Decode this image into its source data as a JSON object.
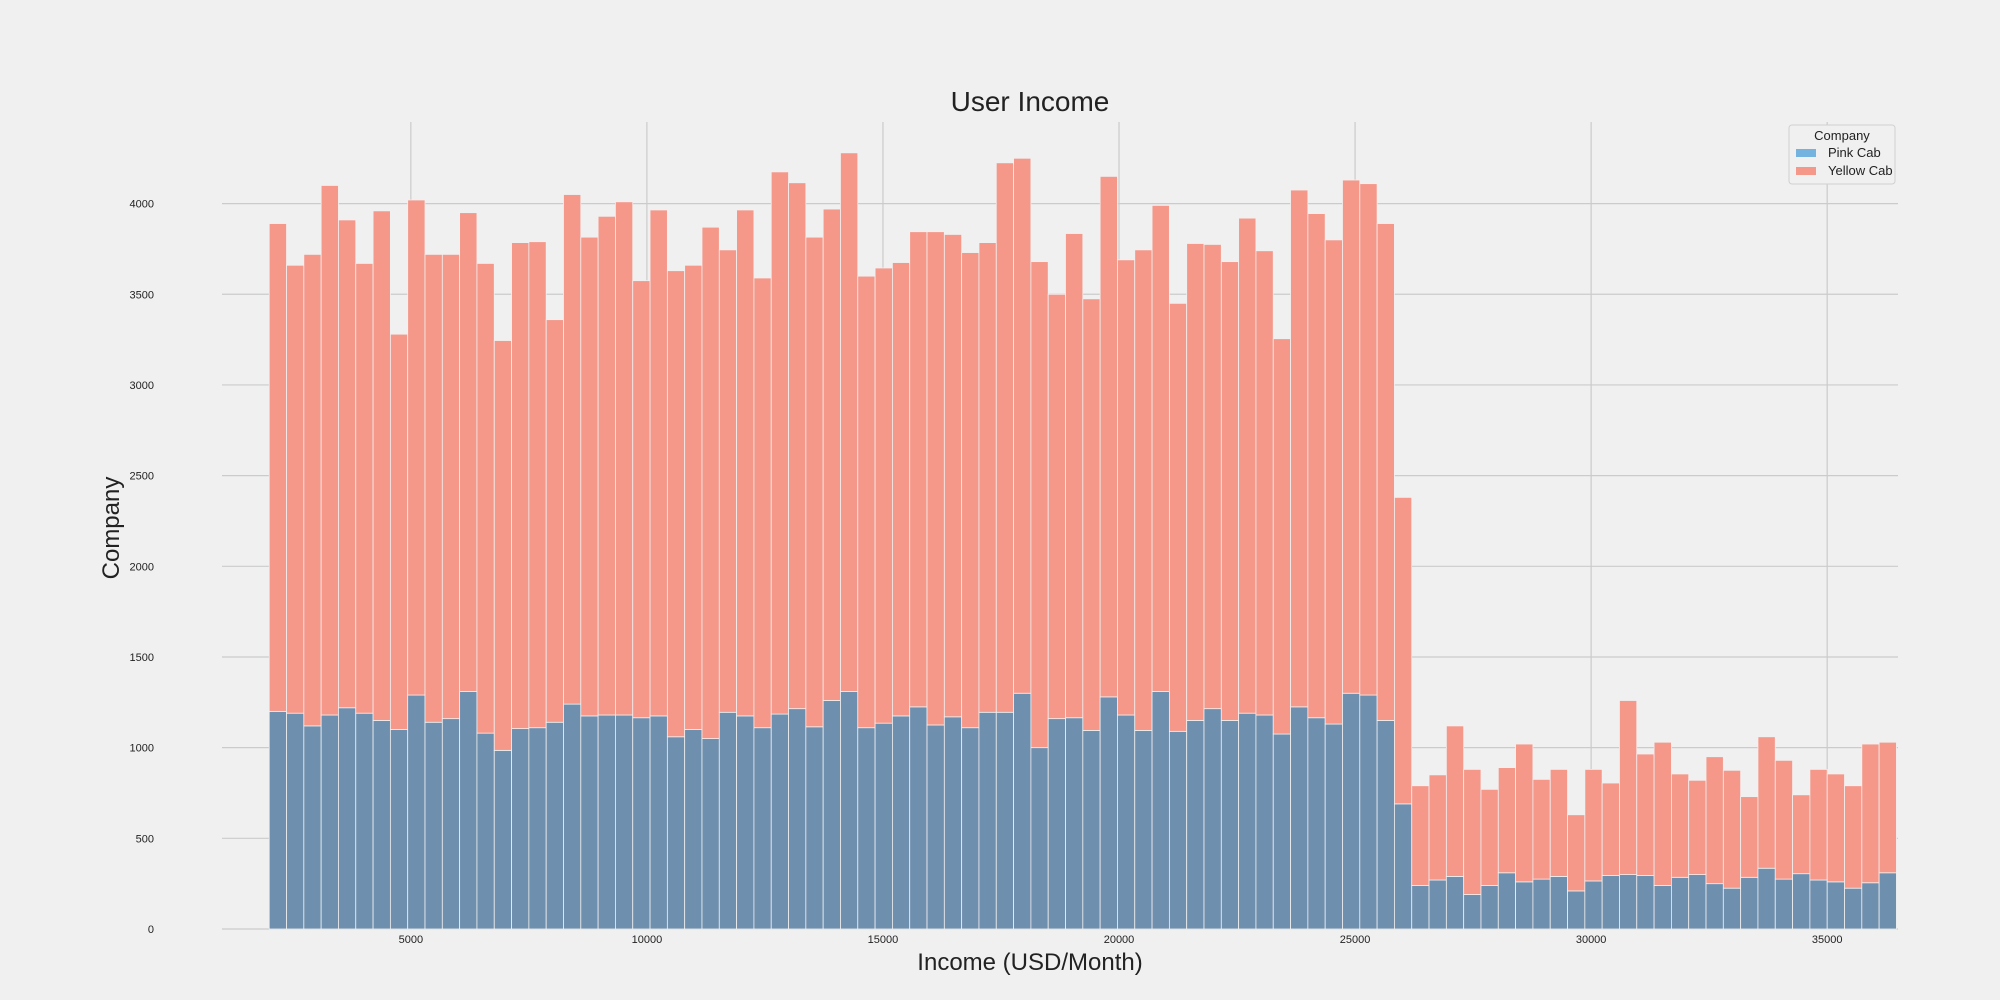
{
  "chart_data": {
    "type": "bar",
    "stacked": true,
    "title": "User Income",
    "xlabel": "Income (USD/Month)",
    "ylabel": "Company",
    "xlim": [
      1000,
      36500
    ],
    "ylim": [
      0,
      4450
    ],
    "bin_start": 2000,
    "bin_width": 366.67,
    "x_ticks": [
      5000,
      10000,
      15000,
      20000,
      25000,
      30000,
      35000
    ],
    "y_ticks": [
      0,
      500,
      1000,
      1500,
      2000,
      2500,
      3000,
      3500,
      4000
    ],
    "grid": true,
    "legend": {
      "title": "Company",
      "placement": "top-right"
    },
    "series": [
      {
        "name": "Pink Cab",
        "color": "#6f8fae",
        "legend_color": "#74b3e0",
        "values": [
          1200,
          1190,
          1120,
          1180,
          1220,
          1190,
          1150,
          1100,
          1290,
          1140,
          1160,
          1310,
          1080,
          985,
          1105,
          1110,
          1140,
          1240,
          1175,
          1180,
          1180,
          1165,
          1175,
          1060,
          1100,
          1050,
          1195,
          1175,
          1110,
          1185,
          1215,
          1115,
          1260,
          1310,
          1110,
          1135,
          1175,
          1225,
          1125,
          1170,
          1110,
          1195,
          1195,
          1300,
          1000,
          1160,
          1165,
          1095,
          1280,
          1180,
          1095,
          1310,
          1090,
          1150,
          1215,
          1150,
          1190,
          1180,
          1075,
          1225,
          1165,
          1130,
          1300,
          1290,
          1150,
          690,
          240,
          270,
          290,
          190,
          240,
          310,
          260,
          275,
          290,
          210,
          265,
          295,
          300,
          295,
          240,
          285,
          300,
          250,
          225,
          285,
          335,
          275,
          305,
          270,
          260,
          225,
          255,
          310
        ]
      },
      {
        "name": "Yellow Cab",
        "color": "#f5988a",
        "legend_color": "#f5988a",
        "values": [
          2690,
          2470,
          2600,
          2920,
          2690,
          2480,
          2810,
          2180,
          2730,
          2580,
          2560,
          2640,
          2590,
          2260,
          2680,
          2680,
          2220,
          2810,
          2640,
          2750,
          2830,
          2410,
          2790,
          2570,
          2560,
          2820,
          2550,
          2790,
          2480,
          2990,
          2900,
          2700,
          2710,
          2970,
          2490,
          2510,
          2500,
          2620,
          2720,
          2660,
          2620,
          2590,
          3030,
          2950,
          2680,
          2340,
          2670,
          2380,
          2870,
          2510,
          2650,
          2680,
          2360,
          2630,
          2560,
          2530,
          2730,
          2560,
          2180,
          2850,
          2780,
          2670,
          2830,
          2820,
          2740,
          1690,
          550,
          580,
          830,
          690,
          530,
          580,
          760,
          550,
          590,
          420,
          615,
          510,
          960,
          670,
          790,
          570,
          520,
          700,
          650,
          445,
          725,
          655,
          435,
          610,
          595,
          565,
          765,
          720
        ]
      }
    ]
  }
}
